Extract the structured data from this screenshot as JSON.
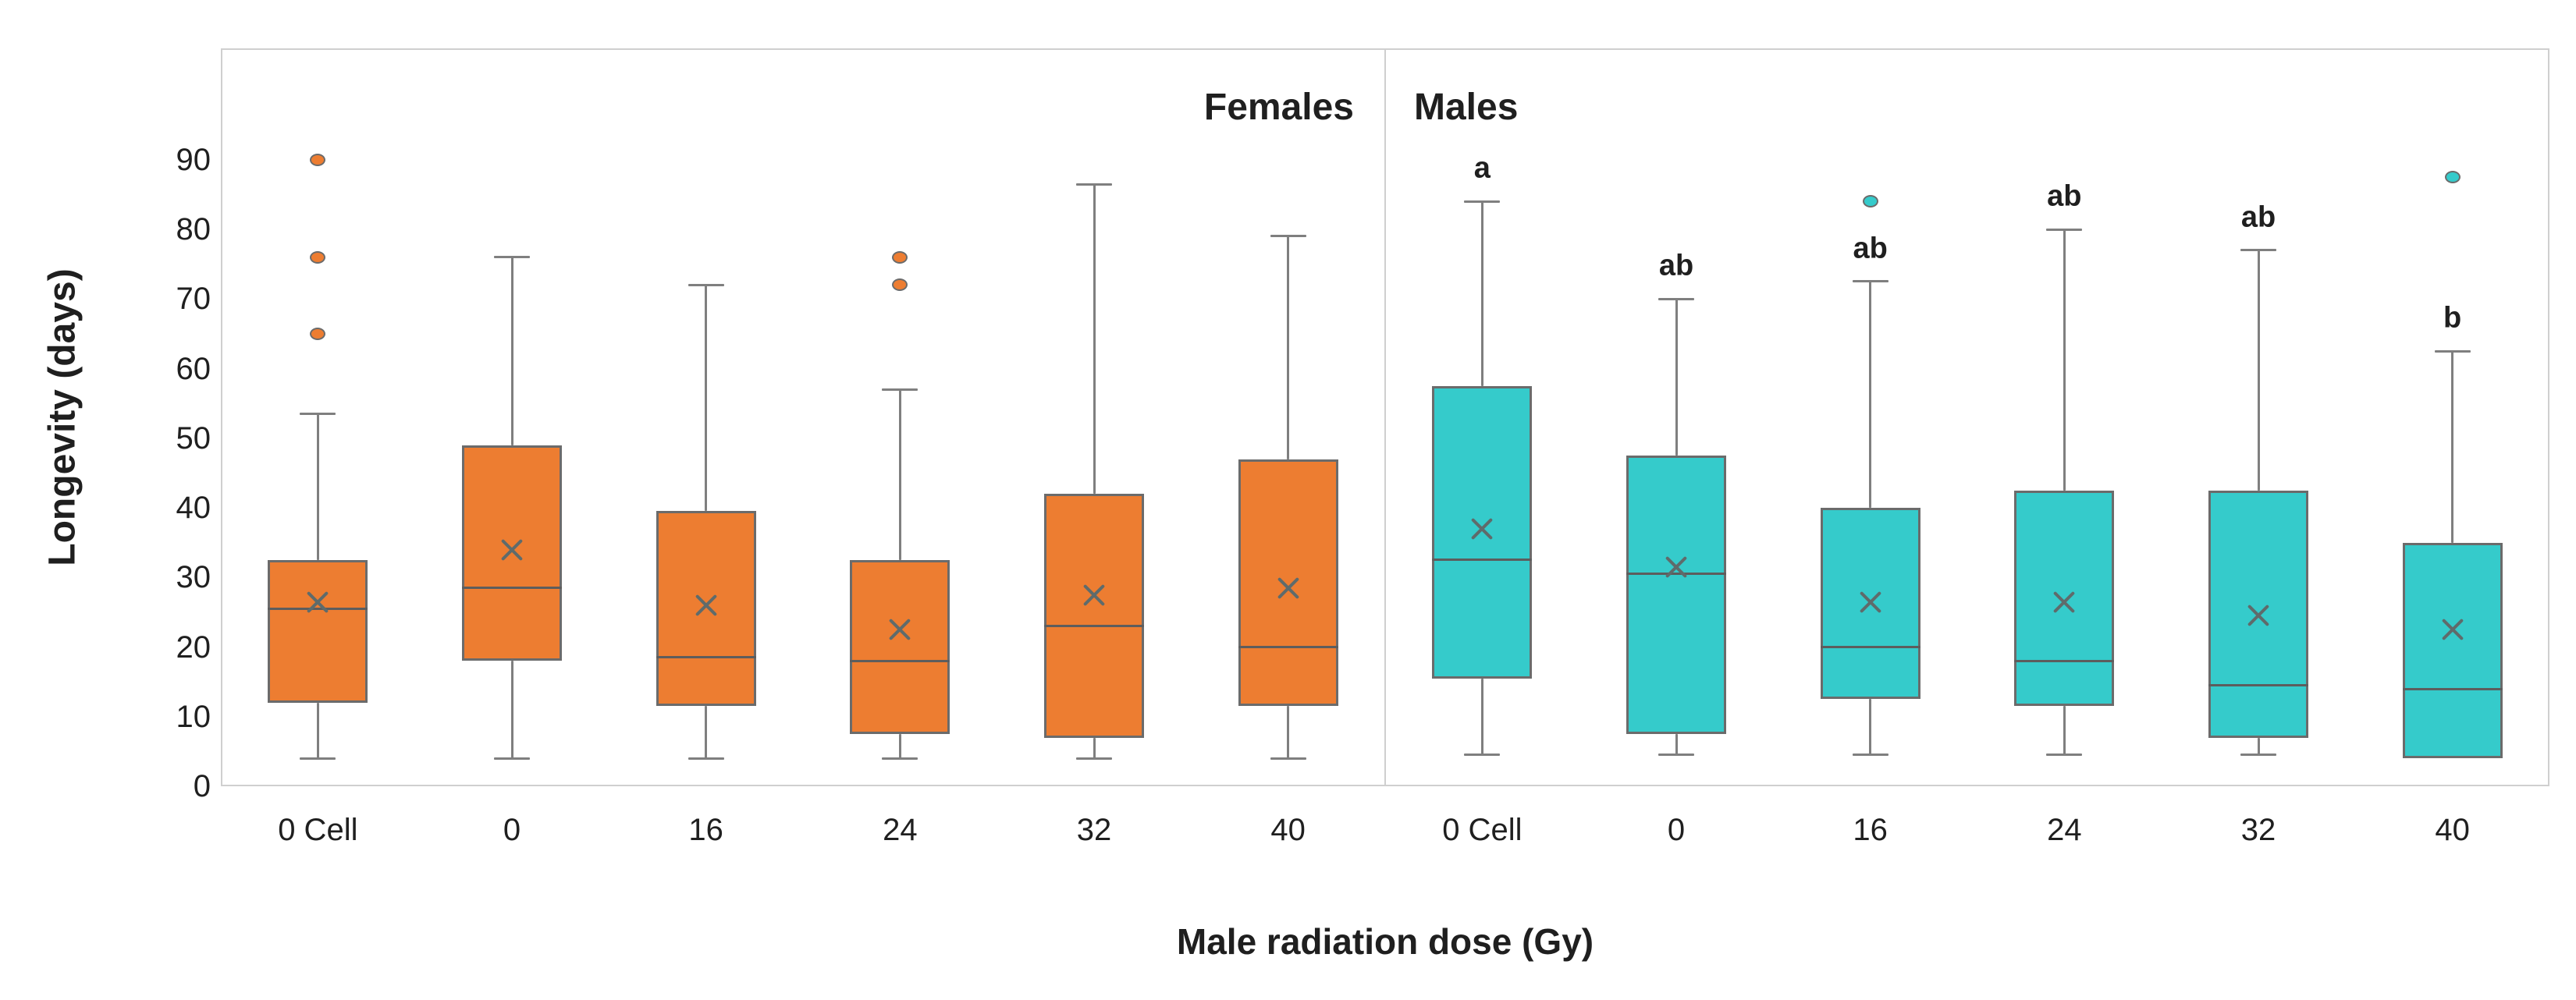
{
  "chart_data": {
    "type": "boxplot",
    "ylabel": "Longevity (days)",
    "xlabel": "Male radiation dose (Gy)",
    "y_ticks": [
      0,
      10,
      20,
      30,
      40,
      50,
      60,
      70,
      80,
      90
    ],
    "ylim": [
      0,
      106
    ],
    "grid": false,
    "legend_position": "none",
    "panels": [
      {
        "label": "Females",
        "color": "#ED7D31",
        "categories": [
          "0 Cell",
          "0",
          "16",
          "24",
          "32",
          "40"
        ],
        "boxes": [
          {
            "category": "0 Cell",
            "min": 4,
            "q1": 12,
            "median": 25.5,
            "mean": 26.5,
            "q3": 32.5,
            "max": 53.5,
            "outliers": [
              65,
              76,
              90
            ],
            "letter": ""
          },
          {
            "category": "0",
            "min": 4,
            "q1": 18,
            "median": 28.5,
            "mean": 34,
            "q3": 49,
            "max": 76,
            "outliers": [],
            "letter": ""
          },
          {
            "category": "16",
            "min": 4,
            "q1": 11.5,
            "median": 18.5,
            "mean": 26,
            "q3": 39.5,
            "max": 72,
            "outliers": [],
            "letter": ""
          },
          {
            "category": "24",
            "min": 4,
            "q1": 7.5,
            "median": 18,
            "mean": 22.5,
            "q3": 32.5,
            "max": 57,
            "outliers": [
              72,
              76
            ],
            "letter": ""
          },
          {
            "category": "32",
            "min": 4,
            "q1": 7,
            "median": 23,
            "mean": 27.5,
            "q3": 42,
            "max": 86.5,
            "outliers": [],
            "letter": ""
          },
          {
            "category": "40",
            "min": 4,
            "q1": 11.5,
            "median": 20,
            "mean": 28.5,
            "q3": 47,
            "max": 79,
            "outliers": [],
            "letter": ""
          }
        ]
      },
      {
        "label": "Males",
        "color": "#35CBCB",
        "categories": [
          "0 Cell",
          "0",
          "16",
          "24",
          "32",
          "40"
        ],
        "boxes": [
          {
            "category": "0 Cell",
            "min": 4.5,
            "q1": 15.5,
            "median": 32.5,
            "mean": 37,
            "q3": 57.5,
            "max": 84,
            "outliers": [],
            "letter": "a"
          },
          {
            "category": "0",
            "min": 4.5,
            "q1": 7.5,
            "median": 30.5,
            "mean": 31.5,
            "q3": 47.5,
            "max": 70,
            "outliers": [],
            "letter": "ab"
          },
          {
            "category": "16",
            "min": 4.5,
            "q1": 12.5,
            "median": 20,
            "mean": 26.5,
            "q3": 40,
            "max": 72.5,
            "outliers": [
              84
            ],
            "letter": "ab"
          },
          {
            "category": "24",
            "min": 4.5,
            "q1": 11.5,
            "median": 18,
            "mean": 26.5,
            "q3": 42.5,
            "max": 80,
            "outliers": [],
            "letter": "ab"
          },
          {
            "category": "32",
            "min": 4.5,
            "q1": 7,
            "median": 14.5,
            "mean": 24.5,
            "q3": 42.5,
            "max": 77,
            "outliers": [],
            "letter": "ab"
          },
          {
            "category": "40",
            "min": 4,
            "q1": 4,
            "median": 14,
            "mean": 22.5,
            "q3": 35,
            "max": 62.5,
            "outliers": [
              87.5
            ],
            "letter": "b"
          }
        ]
      }
    ],
    "styles": {
      "box_border": "#6B6B6B",
      "whisker": "#7F7F7F",
      "median": "#5D5D5D",
      "mean_marker": "#5F6B6B",
      "plot_border": "#CFCFCF",
      "text": "#1F1F1F",
      "background": "#FFFFFF"
    }
  }
}
